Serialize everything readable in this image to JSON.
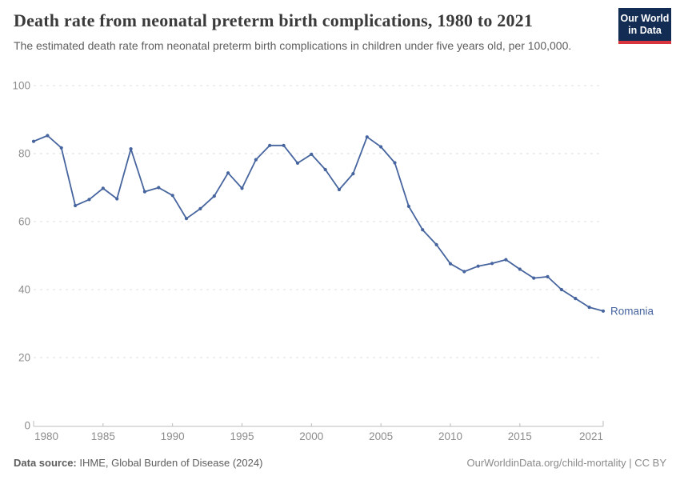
{
  "header": {
    "title": "Death rate from neonatal preterm birth complications, 1980 to 2021",
    "subtitle": "The estimated death rate from neonatal preterm birth complications in children under five years old, per 100,000.",
    "logo": {
      "line1": "Our World",
      "line2": "in Data",
      "bg_color": "#122c54",
      "accent_color": "#d8353e"
    }
  },
  "chart_data": {
    "type": "line",
    "series_label": "Romania",
    "x": [
      1980,
      1981,
      1982,
      1983,
      1984,
      1985,
      1986,
      1987,
      1988,
      1989,
      1990,
      1991,
      1992,
      1993,
      1994,
      1995,
      1996,
      1997,
      1998,
      1999,
      2000,
      2001,
      2002,
      2003,
      2004,
      2005,
      2006,
      2007,
      2008,
      2009,
      2010,
      2011,
      2012,
      2013,
      2014,
      2015,
      2016,
      2017,
      2018,
      2019,
      2020,
      2021
    ],
    "values": [
      83.6,
      85.3,
      81.7,
      64.7,
      66.5,
      69.8,
      66.7,
      81.4,
      68.8,
      70.0,
      67.7,
      60.9,
      63.8,
      67.5,
      74.3,
      69.8,
      78.2,
      82.4,
      82.4,
      77.2,
      79.8,
      75.3,
      69.4,
      74.1,
      84.9,
      82.0,
      77.3,
      64.5,
      57.6,
      53.2,
      47.6,
      45.3,
      46.9,
      47.7,
      48.8,
      46.0,
      43.4,
      43.8,
      40.0,
      37.4,
      34.8,
      33.7
    ],
    "ylim": [
      0,
      100
    ],
    "yticks": [
      0,
      20,
      40,
      60,
      80,
      100
    ],
    "xticks": [
      1980,
      1985,
      1990,
      1995,
      2000,
      2005,
      2010,
      2015,
      2021
    ],
    "grid": "dashed",
    "legend_position": "end-of-line",
    "line_color": "#46649e",
    "axis_label_color": "#8c8c8c",
    "gridline_color": "#dedede",
    "axis_line_color": "#bdbdbd"
  },
  "footer": {
    "source_label": "Data source:",
    "source_text": " IHME, Global Burden of Disease (2024)",
    "right_text": "OurWorldinData.org/child-mortality | CC BY"
  }
}
